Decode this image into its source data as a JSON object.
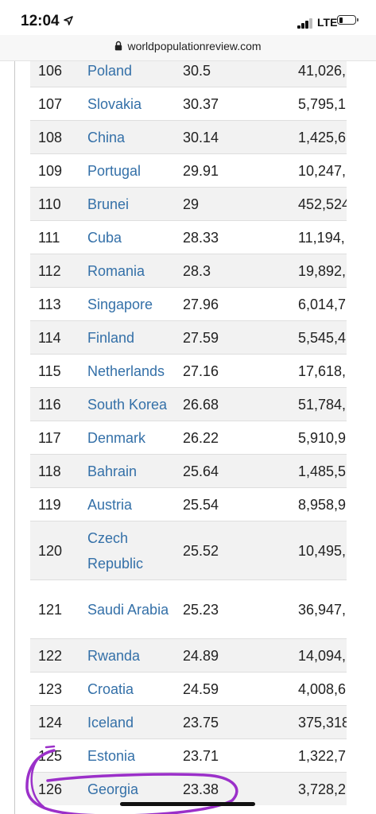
{
  "status_bar": {
    "time": "12:04",
    "network": "LTE",
    "battery_level": 0.2
  },
  "browser": {
    "url": "worldpopulationreview.com"
  },
  "colors": {
    "link": "#3470a8",
    "annotation": "#9b30c9",
    "row_stripe": "#f2f2f2"
  },
  "table": {
    "rows": [
      {
        "rank": "106",
        "country": "Poland",
        "value": "30.5",
        "population": "41,026,"
      },
      {
        "rank": "107",
        "country": "Slovakia",
        "value": "30.37",
        "population": "5,795,1"
      },
      {
        "rank": "108",
        "country": "China",
        "value": "30.14",
        "population": "1,425,6"
      },
      {
        "rank": "109",
        "country": "Portugal",
        "value": "29.91",
        "population": "10,247,"
      },
      {
        "rank": "110",
        "country": "Brunei",
        "value": "29",
        "population": "452,524"
      },
      {
        "rank": "111",
        "country": "Cuba",
        "value": "28.33",
        "population": "11,194,"
      },
      {
        "rank": "112",
        "country": "Romania",
        "value": "28.3",
        "population": "19,892,"
      },
      {
        "rank": "113",
        "country": "Singapore",
        "value": "27.96",
        "population": "6,014,7"
      },
      {
        "rank": "114",
        "country": "Finland",
        "value": "27.59",
        "population": "5,545,4"
      },
      {
        "rank": "115",
        "country": "Netherlands",
        "value": "27.16",
        "population": "17,618,"
      },
      {
        "rank": "116",
        "country": "South Korea",
        "value": "26.68",
        "population": "51,784,"
      },
      {
        "rank": "117",
        "country": "Denmark",
        "value": "26.22",
        "population": "5,910,9"
      },
      {
        "rank": "118",
        "country": "Bahrain",
        "value": "25.64",
        "population": "1,485,5"
      },
      {
        "rank": "119",
        "country": "Austria",
        "value": "25.54",
        "population": "8,958,9"
      },
      {
        "rank": "120",
        "country": "Czech Republic",
        "value": "25.52",
        "population": "10,495,"
      },
      {
        "rank": "121",
        "country": "Saudi Arabia",
        "value": "25.23",
        "population": "36,947,"
      },
      {
        "rank": "122",
        "country": "Rwanda",
        "value": "24.89",
        "population": "14,094,"
      },
      {
        "rank": "123",
        "country": "Croatia",
        "value": "24.59",
        "population": "4,008,6"
      },
      {
        "rank": "124",
        "country": "Iceland",
        "value": "23.75",
        "population": "375,318"
      },
      {
        "rank": "125",
        "country": "Estonia",
        "value": "23.71",
        "population": "1,322,7"
      },
      {
        "rank": "126",
        "country": "Georgia",
        "value": "23.38",
        "population": "3,728,2"
      }
    ]
  }
}
